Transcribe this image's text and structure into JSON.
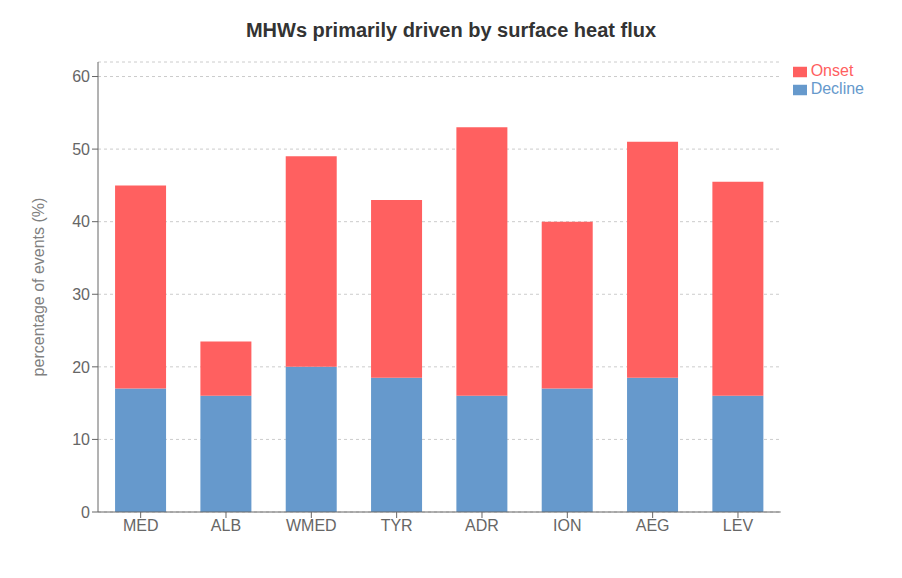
{
  "chart_data": {
    "type": "bar",
    "title": "MHWs primarily driven by surface heat flux",
    "categories": [
      "MED",
      "ALB",
      "WMED",
      "TYR",
      "ADR",
      "ION",
      "AEG",
      "LEV"
    ],
    "series": [
      {
        "name": "Decline",
        "color": "#6699CC",
        "values": [
          17.0,
          16.0,
          20.0,
          18.5,
          16.0,
          17.0,
          18.5,
          16.0
        ]
      },
      {
        "name": "Onset",
        "color": "#FF6060",
        "values": [
          28.0,
          7.5,
          29.0,
          24.5,
          37.0,
          23.0,
          32.5,
          29.5
        ]
      }
    ],
    "ylabel": "percentage of events (%)",
    "ylim": [
      0,
      62
    ],
    "yticks": [
      0,
      10,
      20,
      30,
      40,
      50,
      60
    ],
    "stacked": true,
    "grid": true,
    "legend": "upper right"
  }
}
